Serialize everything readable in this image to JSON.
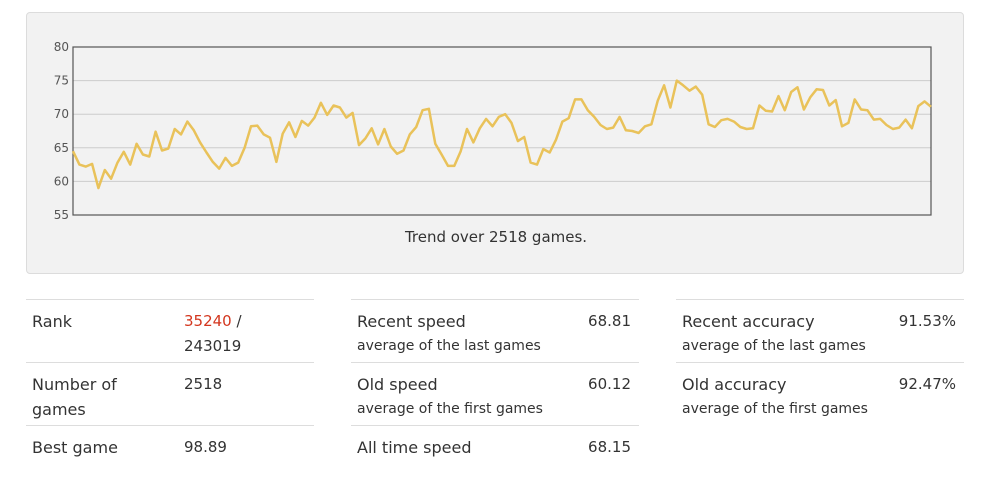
{
  "colors": {
    "line": "#e9c25a",
    "highlight": "#d3361e",
    "panel": "#f2f2f2",
    "grid": "#cccccc"
  },
  "chart_data": {
    "type": "line",
    "caption": "Trend over 2518 games.",
    "ylim": [
      55,
      80
    ],
    "yticks": [
      55,
      60,
      65,
      70,
      75,
      80
    ],
    "grid": true,
    "values": [
      64.5,
      62.5,
      62.2,
      62.6,
      59.0,
      61.7,
      60.4,
      62.8,
      64.4,
      62.5,
      65.6,
      64.0,
      63.7,
      67.4,
      64.6,
      64.9,
      67.8,
      67.0,
      68.9,
      67.6,
      65.8,
      64.3,
      62.9,
      61.9,
      63.5,
      62.3,
      62.8,
      65.0,
      68.2,
      68.3,
      67.0,
      66.5,
      62.9,
      67.1,
      68.8,
      66.6,
      69.0,
      68.3,
      69.5,
      71.7,
      69.9,
      71.3,
      71.0,
      69.5,
      70.2,
      65.4,
      66.4,
      67.9,
      65.5,
      67.8,
      65.2,
      64.1,
      64.6,
      67.0,
      68.1,
      70.6,
      70.8,
      65.6,
      64.0,
      62.3,
      62.3,
      64.5,
      67.8,
      65.8,
      67.9,
      69.3,
      68.2,
      69.6,
      70.0,
      68.7,
      66.0,
      66.6,
      62.8,
      62.5,
      64.8,
      64.3,
      66.2,
      68.9,
      69.4,
      72.2,
      72.2,
      70.6,
      69.6,
      68.4,
      67.8,
      68.0,
      69.6,
      67.6,
      67.5,
      67.2,
      68.2,
      68.5,
      72.0,
      74.3,
      71.0,
      75.0,
      74.3,
      73.5,
      74.1,
      72.9,
      68.5,
      68.1,
      69.1,
      69.3,
      68.9,
      68.1,
      67.8,
      67.9,
      71.3,
      70.5,
      70.4,
      72.7,
      70.6,
      73.3,
      74.0,
      70.7,
      72.5,
      73.7,
      73.6,
      71.3,
      72.1,
      68.2,
      68.7,
      72.2,
      70.7,
      70.6,
      69.2,
      69.3,
      68.4,
      67.8,
      68.0,
      69.2,
      67.9,
      71.2,
      71.9,
      71.1
    ]
  },
  "stats": {
    "rank": {
      "label": "Rank",
      "position": "35240",
      "separator": " /",
      "total": "243019"
    },
    "games": {
      "label": "Number of games",
      "value": "2518"
    },
    "best": {
      "label": "Best game",
      "value": "98.89"
    },
    "recent_speed": {
      "label": "Recent speed",
      "sub": "average of the last games",
      "value": "68.81"
    },
    "old_speed": {
      "label": "Old speed",
      "sub": "average of the first games",
      "value": "60.12"
    },
    "all_time_speed": {
      "label": "All time speed",
      "value": "68.15"
    },
    "recent_accuracy": {
      "label": "Recent accuracy",
      "sub": "average of the last games",
      "value": "91.53%"
    },
    "old_accuracy": {
      "label": "Old accuracy",
      "sub": "average of the first games",
      "value": "92.47%"
    }
  }
}
